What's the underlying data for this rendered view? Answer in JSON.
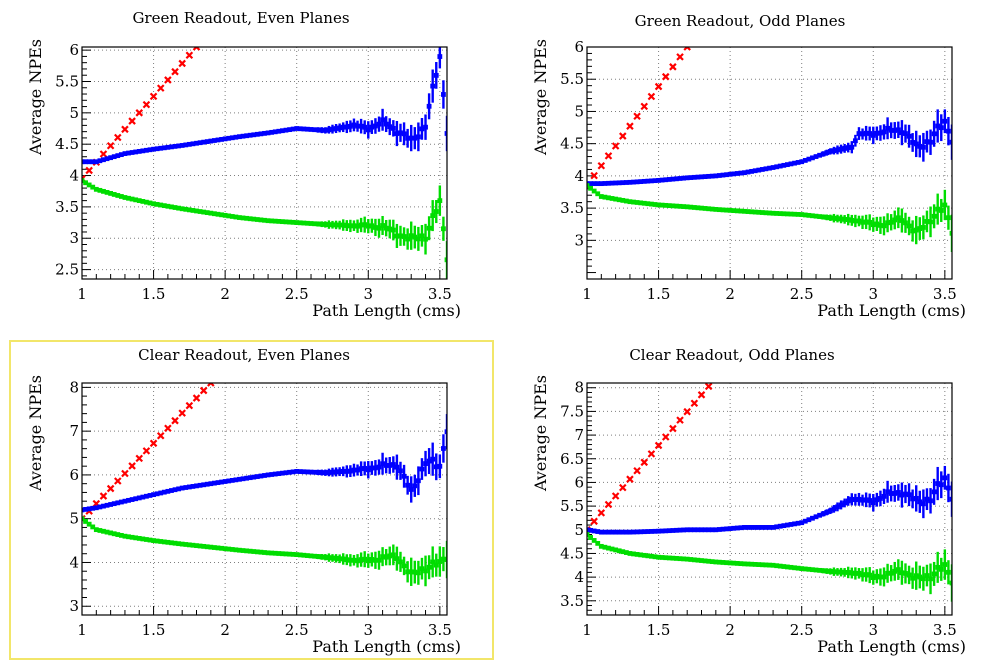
{
  "colors": {
    "frame": "#000000",
    "grid": "#7f7f7f",
    "highlight": "#f2e66a",
    "series": [
      "#ff0000",
      "#0000ff",
      "#00dd00"
    ]
  },
  "chart_data": [
    {
      "type": "scatter",
      "title": "Green Readout, Even Planes",
      "xlabel": "Path Length (cms)",
      "ylabel": "Average NPEs",
      "xlim": [
        1,
        3.55
      ],
      "ylim": [
        2.35,
        6.05
      ],
      "xticks": [
        "1",
        "1.5",
        "2",
        "2.5",
        "3",
        "3.5"
      ],
      "yticks": [
        "2.5",
        "3",
        "3.5",
        "4",
        "4.5",
        "5",
        "5.5",
        "6"
      ],
      "grid": true,
      "series": [
        {
          "style": "red-crosses",
          "x": [
            1.0,
            1.8
          ],
          "y": [
            3.95,
            6.05
          ]
        },
        {
          "style": "blue-points",
          "x": [
            1.0,
            1.1,
            1.3,
            1.5,
            1.7,
            1.9,
            2.1,
            2.3,
            2.5,
            2.7,
            2.9,
            3.0,
            3.1,
            3.2,
            3.3,
            3.4,
            3.5,
            3.55
          ],
          "y": [
            4.22,
            4.22,
            4.35,
            4.42,
            4.48,
            4.55,
            4.62,
            4.68,
            4.75,
            4.72,
            4.8,
            4.75,
            4.85,
            4.72,
            4.55,
            4.8,
            5.9,
            4.75
          ]
        },
        {
          "style": "green-points",
          "x": [
            1.0,
            1.1,
            1.3,
            1.5,
            1.7,
            1.9,
            2.1,
            2.3,
            2.5,
            2.7,
            2.9,
            3.0,
            3.1,
            3.2,
            3.3,
            3.4,
            3.5,
            3.55
          ],
          "y": [
            3.92,
            3.78,
            3.65,
            3.55,
            3.47,
            3.4,
            3.33,
            3.28,
            3.25,
            3.22,
            3.2,
            3.2,
            3.18,
            3.08,
            2.98,
            3.05,
            3.55,
            2.75
          ]
        }
      ]
    },
    {
      "type": "scatter",
      "title": "Green Readout, Odd Planes",
      "xlabel": "Path Length (cms)",
      "ylabel": "Average NPEs",
      "xlim": [
        1,
        3.55
      ],
      "ylim": [
        2.4,
        6.0
      ],
      "xticks": [
        "1",
        "1.5",
        "2",
        "2.5",
        "3",
        "3.5"
      ],
      "yticks": [
        "3",
        "3.5",
        "4",
        "4.5",
        "5",
        "5.5",
        "6"
      ],
      "grid": true,
      "series": [
        {
          "style": "red-crosses",
          "x": [
            1.0,
            1.7
          ],
          "y": [
            3.85,
            6.0
          ]
        },
        {
          "style": "blue-points",
          "x": [
            1.0,
            1.1,
            1.3,
            1.5,
            1.7,
            1.9,
            2.1,
            2.3,
            2.5,
            2.7,
            2.85,
            2.9,
            3.0,
            3.1,
            3.2,
            3.3,
            3.4,
            3.5,
            3.55
          ],
          "y": [
            3.88,
            3.88,
            3.9,
            3.93,
            3.97,
            4.0,
            4.05,
            4.13,
            4.22,
            4.38,
            4.45,
            4.65,
            4.65,
            4.7,
            4.72,
            4.45,
            4.55,
            4.85,
            4.6
          ]
        },
        {
          "style": "green-points",
          "x": [
            1.0,
            1.1,
            1.3,
            1.5,
            1.7,
            1.9,
            2.1,
            2.3,
            2.5,
            2.7,
            2.9,
            3.0,
            3.1,
            3.2,
            3.3,
            3.4,
            3.5,
            3.55
          ],
          "y": [
            3.85,
            3.68,
            3.6,
            3.55,
            3.52,
            3.48,
            3.45,
            3.42,
            3.4,
            3.35,
            3.3,
            3.25,
            3.25,
            3.35,
            3.1,
            3.35,
            3.5,
            3.2
          ]
        }
      ]
    },
    {
      "type": "scatter",
      "title": "Clear Readout, Even Planes",
      "xlabel": "Path Length (cms)",
      "ylabel": "Average NPEs",
      "xlim": [
        1,
        3.55
      ],
      "ylim": [
        2.8,
        8.1
      ],
      "xticks": [
        "1",
        "1.5",
        "2",
        "2.5",
        "3",
        "3.5"
      ],
      "yticks": [
        "3",
        "4",
        "5",
        "6",
        "7",
        "8"
      ],
      "grid": true,
      "series": [
        {
          "style": "red-crosses",
          "x": [
            1.0,
            1.9
          ],
          "y": [
            5.0,
            8.1
          ]
        },
        {
          "style": "blue-points",
          "x": [
            1.0,
            1.1,
            1.3,
            1.5,
            1.7,
            1.9,
            2.1,
            2.3,
            2.5,
            2.7,
            2.9,
            3.0,
            3.1,
            3.2,
            3.3,
            3.4,
            3.5,
            3.55
          ],
          "y": [
            5.2,
            5.25,
            5.4,
            5.55,
            5.7,
            5.8,
            5.9,
            6.0,
            6.08,
            6.05,
            6.1,
            6.15,
            6.2,
            6.25,
            5.6,
            6.3,
            6.2,
            7.1
          ]
        },
        {
          "style": "green-points",
          "x": [
            1.0,
            1.1,
            1.3,
            1.5,
            1.7,
            1.9,
            2.1,
            2.3,
            2.5,
            2.7,
            2.9,
            3.0,
            3.1,
            3.2,
            3.3,
            3.4,
            3.5,
            3.55
          ],
          "y": [
            5.0,
            4.75,
            4.6,
            4.5,
            4.42,
            4.35,
            4.28,
            4.22,
            4.18,
            4.12,
            4.05,
            4.05,
            4.1,
            4.15,
            3.7,
            3.9,
            3.95,
            4.2
          ]
        }
      ]
    },
    {
      "type": "scatter",
      "title": "Clear Readout, Odd Planes",
      "xlabel": "Path Length (cms)",
      "ylabel": "Average NPEs",
      "xlim": [
        1,
        3.55
      ],
      "ylim": [
        3.2,
        8.1
      ],
      "xticks": [
        "1",
        "1.5",
        "2",
        "2.5",
        "3",
        "3.5"
      ],
      "yticks": [
        "3.5",
        "4",
        "4.5",
        "5",
        "5.5",
        "6",
        "6.5",
        "7",
        "7.5",
        "8"
      ],
      "grid": true,
      "series": [
        {
          "style": "red-crosses",
          "x": [
            1.0,
            1.87
          ],
          "y": [
            5.0,
            8.1
          ]
        },
        {
          "style": "blue-points",
          "x": [
            1.0,
            1.1,
            1.3,
            1.5,
            1.7,
            1.9,
            2.1,
            2.3,
            2.5,
            2.7,
            2.85,
            3.0,
            3.1,
            3.2,
            3.3,
            3.4,
            3.5,
            3.55
          ],
          "y": [
            5.0,
            4.95,
            4.95,
            4.97,
            5.0,
            5.0,
            5.05,
            5.05,
            5.15,
            5.4,
            5.65,
            5.6,
            5.75,
            5.8,
            5.6,
            5.65,
            6.1,
            5.75
          ]
        },
        {
          "style": "green-points",
          "x": [
            1.0,
            1.1,
            1.3,
            1.5,
            1.7,
            1.9,
            2.1,
            2.3,
            2.5,
            2.7,
            2.9,
            3.0,
            3.1,
            3.2,
            3.3,
            3.4,
            3.5,
            3.55
          ],
          "y": [
            4.9,
            4.65,
            4.5,
            4.42,
            4.38,
            4.32,
            4.28,
            4.25,
            4.18,
            4.12,
            4.08,
            4.0,
            4.05,
            4.15,
            3.95,
            4.05,
            4.2,
            4.0
          ]
        }
      ]
    }
  ]
}
